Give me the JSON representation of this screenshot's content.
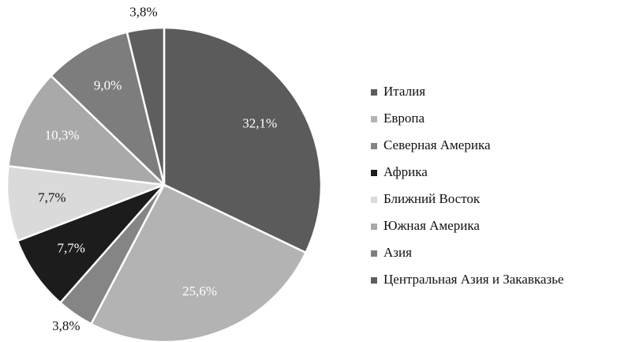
{
  "chart_data": {
    "type": "pie",
    "categories": [
      "Италия",
      "Европа",
      "Северная Америка",
      "Африка",
      "Ближний Восток",
      "Южная Америка",
      "Азия",
      "Центральная Азия и Закавказье"
    ],
    "values": [
      32.1,
      25.6,
      3.8,
      7.7,
      7.7,
      10.3,
      9.0,
      3.8
    ],
    "value_labels": [
      "32,1%",
      "25,6%",
      "3,8%",
      "7,7%",
      "7,7%",
      "10,3%",
      "9,0%",
      "3,8%"
    ],
    "colors": [
      "#5b5b5b",
      "#b3b3b3",
      "#858585",
      "#1c1c1c",
      "#dadada",
      "#a9a9a9",
      "#7d7d7d",
      "#5e5e5e"
    ],
    "legend": "right"
  }
}
